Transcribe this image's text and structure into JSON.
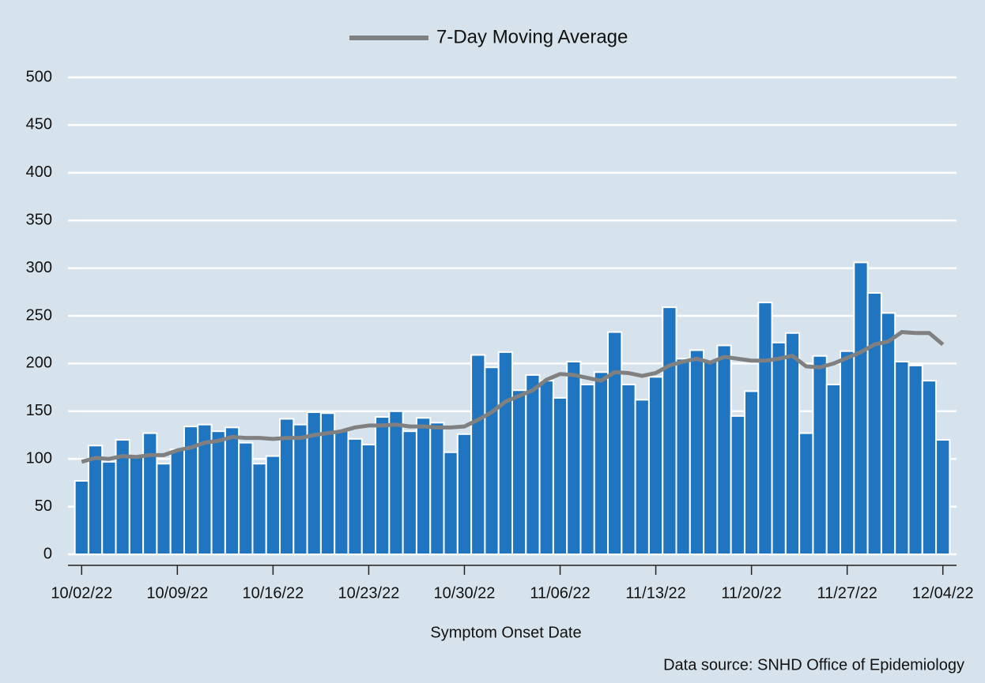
{
  "chart_data": {
    "type": "bar",
    "legend_position": "top",
    "xlabel": "Symptom Onset Date",
    "source": "Data source: SNHD Office of Epidemiology",
    "categories": [
      "10/02/22",
      null,
      null,
      null,
      null,
      null,
      null,
      "10/09/22",
      null,
      null,
      null,
      null,
      null,
      null,
      "10/16/22",
      null,
      null,
      null,
      null,
      null,
      null,
      "10/23/22",
      null,
      null,
      null,
      null,
      null,
      null,
      "10/30/22",
      null,
      null,
      null,
      null,
      null,
      null,
      "11/06/22",
      null,
      null,
      null,
      null,
      null,
      null,
      "11/13/22",
      null,
      null,
      null,
      null,
      null,
      null,
      "11/20/22",
      null,
      null,
      null,
      null,
      null,
      null,
      "11/27/22",
      null,
      null,
      null,
      null,
      null,
      null,
      "12/04/22"
    ],
    "series": [
      {
        "type": "bar",
        "color": "#1f75bf",
        "values": [
          77,
          114,
          97,
          120,
          102,
          127,
          95,
          110,
          134,
          136,
          129,
          133,
          117,
          95,
          103,
          142,
          136,
          149,
          148,
          130,
          121,
          115,
          144,
          150,
          129,
          143,
          138,
          107,
          126,
          209,
          196,
          212,
          172,
          188,
          182,
          164,
          202,
          178,
          191,
          233,
          178,
          162,
          186,
          259,
          205,
          214,
          203,
          219,
          145,
          171,
          264,
          222,
          232,
          127,
          208,
          178,
          213,
          306,
          274,
          253,
          202,
          198,
          182,
          120
        ]
      },
      {
        "type": "line",
        "name": "7-Day Moving Average",
        "color": "#808080",
        "values": [
          97,
          101,
          100,
          103,
          102,
          104,
          104,
          109,
          112,
          117,
          119,
          123,
          122,
          122,
          121,
          122,
          122,
          125,
          127,
          129,
          133,
          135,
          135,
          136,
          134,
          134,
          133,
          133,
          134,
          141,
          149,
          160,
          166,
          172,
          183,
          189,
          188,
          185,
          182,
          191,
          190,
          187,
          190,
          198,
          202,
          205,
          201,
          207,
          205,
          203,
          203,
          205,
          208,
          197,
          196,
          200,
          206,
          212,
          220,
          223,
          233,
          232,
          232,
          220
        ]
      }
    ],
    "ylim": [
      0,
      500
    ],
    "yticks": [
      0,
      50,
      100,
      150,
      200,
      250,
      300,
      350,
      400,
      450,
      500
    ],
    "grid": true
  }
}
